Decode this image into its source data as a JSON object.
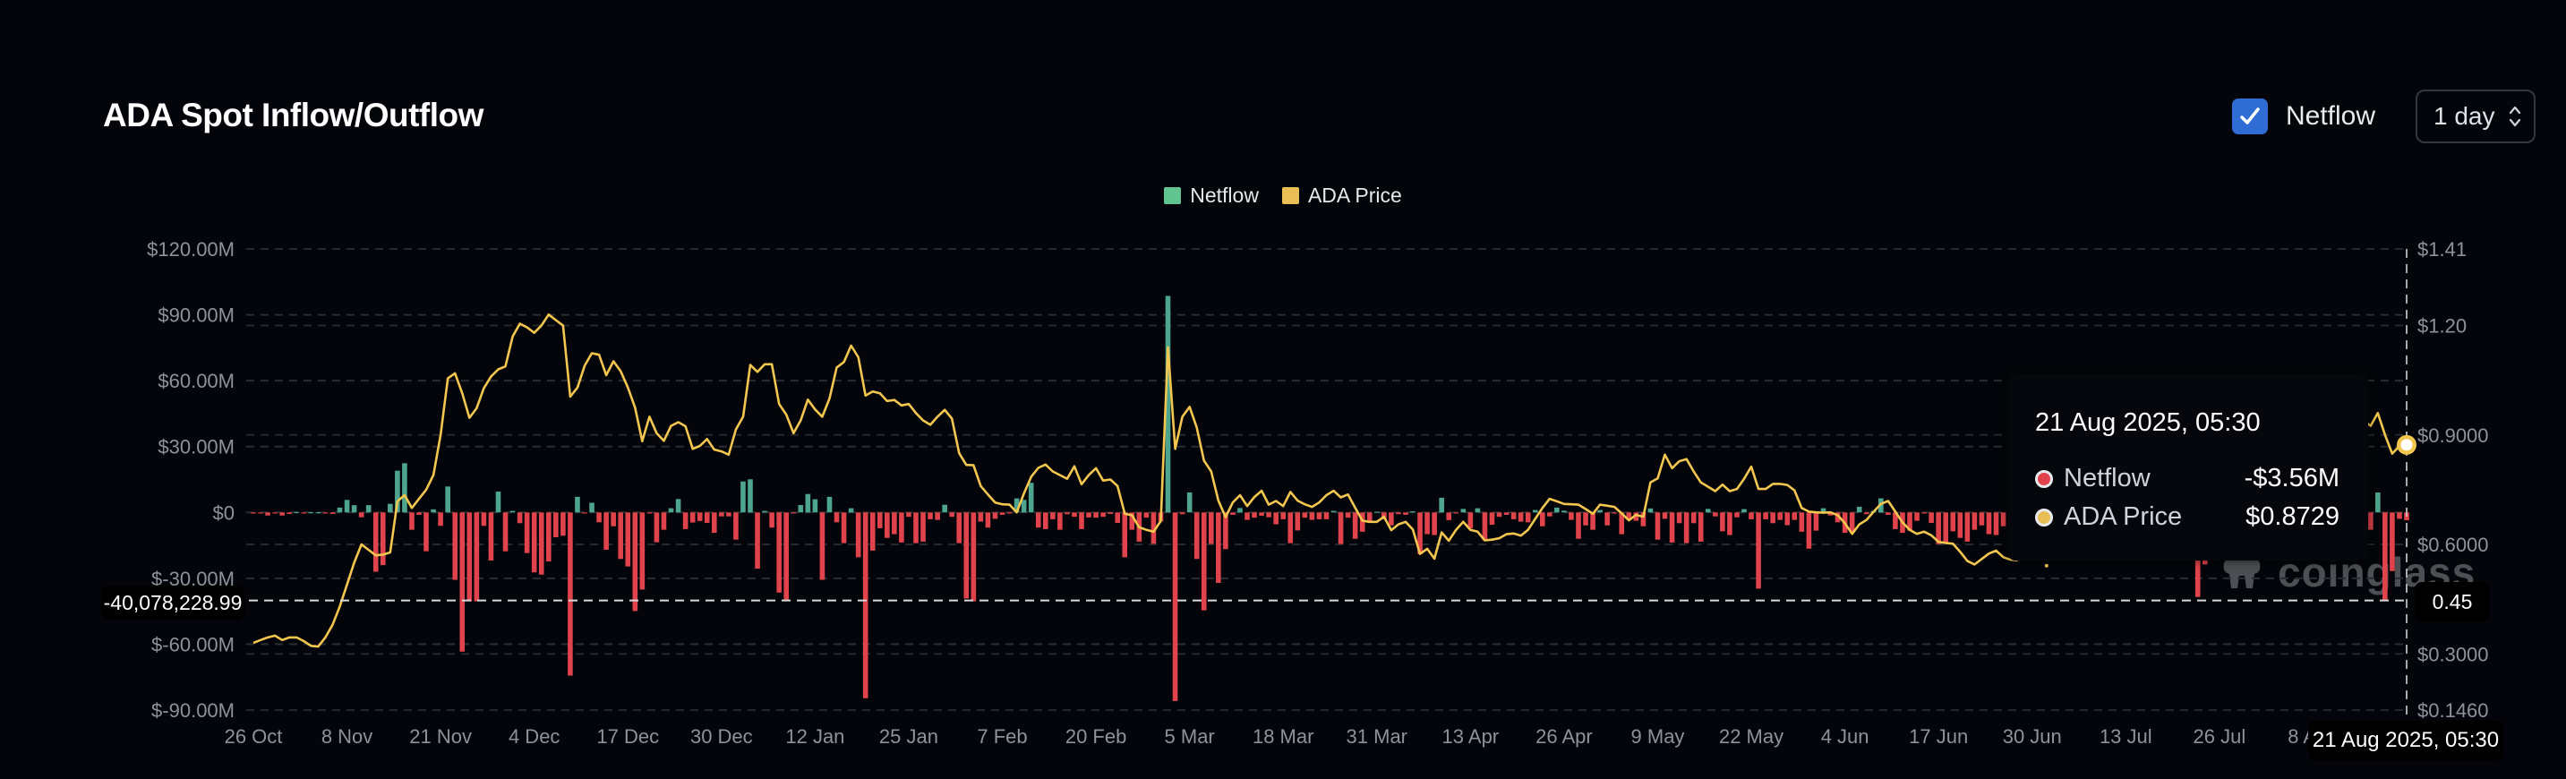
{
  "header": {
    "title": "ADA Spot Inflow/Outflow",
    "netflow_toggle": {
      "label": "Netflow",
      "checked": true
    },
    "interval_select": {
      "value": "1 day"
    }
  },
  "legend": [
    {
      "label": "Netflow",
      "color": "#5fc48e"
    },
    {
      "label": "ADA Price",
      "color": "#e9bf55"
    }
  ],
  "colors": {
    "inflow": "#4ea58f",
    "outflow": "#e0434b",
    "price": "#f3c64f",
    "background": "#03050a",
    "checkbox": "#2f6cd4"
  },
  "tooltip": {
    "date": "21 Aug 2025, 05:30",
    "rows": [
      {
        "label": "Netflow",
        "value": "-$3.56M",
        "dot_color": "#e0434b"
      },
      {
        "label": "ADA Price",
        "value": "$0.8729",
        "dot_color": "#e9bf55"
      }
    ]
  },
  "crosshair": {
    "left_value": "-40,078,228.99",
    "right_value": "0.45",
    "date_label": "21 Aug 2025, 05:30"
  },
  "watermark": "coinglass",
  "chart_data": {
    "type": "bar+line",
    "x_range": [
      "2024-10-26",
      "2025-08-21"
    ],
    "interval": "1 day",
    "x_ticks": [
      "26 Oct",
      "8 Nov",
      "21 Nov",
      "4 Dec",
      "17 Dec",
      "30 Dec",
      "12 Jan",
      "25 Jan",
      "7 Feb",
      "20 Feb",
      "5 Mar",
      "18 Mar",
      "31 Mar",
      "13 Apr",
      "26 Apr",
      "9 May",
      "22 May",
      "4 Jun",
      "17 Jun",
      "30 Jun",
      "13 Jul",
      "26 Jul",
      "8 Aug"
    ],
    "y_left": {
      "unit": "USD millions",
      "range": [
        -90,
        120
      ],
      "ticks": [
        {
          "value": 120,
          "label": "$120.00M"
        },
        {
          "value": 90,
          "label": "$90.00M"
        },
        {
          "value": 60,
          "label": "$60.00M"
        },
        {
          "value": 30,
          "label": "$30.00M"
        },
        {
          "value": 0,
          "label": "$0"
        },
        {
          "value": -30,
          "label": "$-30.00M"
        },
        {
          "value": -60,
          "label": "$-60.00M"
        },
        {
          "value": -90,
          "label": "$-90.00M"
        }
      ]
    },
    "y_right": {
      "unit": "USD",
      "range": [
        0.146,
        1.41
      ],
      "ticks": [
        {
          "value": 1.41,
          "label": "$1.41"
        },
        {
          "value": 1.2,
          "label": "$1.20"
        },
        {
          "value": 0.9,
          "label": "$0.9000"
        },
        {
          "value": 0.6,
          "label": "$0.6000"
        },
        {
          "value": 0.3,
          "label": "$0.3000"
        },
        {
          "value": 0.146,
          "label": "$0.1460"
        }
      ]
    },
    "grid": true,
    "legend_position": "top-center",
    "series": [
      {
        "name": "Netflow",
        "type": "bar",
        "axis": "left",
        "values": [
          -0.5,
          -0.3,
          -1.4,
          -0.3,
          -1.4,
          -0.7,
          0.2,
          -0.5,
          0.1,
          0.1,
          -0.2,
          -0.7,
          2.2,
          5.7,
          3.3,
          -2.2,
          3.3,
          -27,
          -24,
          3.9,
          19,
          22.4,
          -7.9,
          -1.1,
          -17.7,
          1.4,
          -6.1,
          11.8,
          -30.7,
          -63.4,
          -40.5,
          -40.5,
          -6.1,
          -21.9,
          9.5,
          -17.7,
          0.7,
          -4.9,
          -18.5,
          -27.3,
          -28.3,
          -22.3,
          -11.3,
          -10.6,
          -74.3,
          7.1,
          -0.4,
          4.4,
          -4.5,
          -17,
          -6.3,
          -21.2,
          -24.6,
          -44.9,
          -35.1,
          -0.3,
          -13.6,
          -7.9,
          1.9,
          6.1,
          -7.6,
          -4.6,
          -3.9,
          -4.8,
          -9.3,
          -1.8,
          -1.8,
          -12.4,
          14.1,
          15.1,
          -25.6,
          0.7,
          -6.9,
          -36.5,
          -39.9,
          -0.4,
          3.4,
          8.4,
          6.0,
          -30.7,
          7.1,
          -4.5,
          -14,
          1.9,
          -20.4,
          -84.6,
          -17.4,
          -7.2,
          -11.6,
          -9.9,
          -13.7,
          -2,
          -14,
          -13.3,
          -3.1,
          -3.4,
          3.5,
          -2,
          -14,
          -39.2,
          -40.5,
          -4.2,
          -6.9,
          -2.9,
          -1.1,
          -0.3,
          6.4,
          5.7,
          13.5,
          -6.9,
          -7.6,
          -3.1,
          -7.9,
          -0.8,
          -2,
          -7.6,
          -2.3,
          -2.4,
          -2,
          -0.7,
          -4.8,
          -20.4,
          -7.9,
          -13.3,
          -2.4,
          -14.3,
          -4.1,
          98.6,
          -85.9,
          -0.8,
          9.1,
          -21.2,
          -44.6,
          -14.4,
          -32.1,
          -16.7,
          -1.1,
          2.0,
          -3.4,
          -2.4,
          -1.5,
          -2.2,
          -5.4,
          -3.1,
          -14,
          -8.2,
          -2.4,
          -3.4,
          -3.1,
          -3.1,
          0.7,
          -14.4,
          -2.4,
          -12,
          -8.8,
          -3.8,
          0.3,
          -3.1,
          -5.9,
          -0.8,
          -1.1,
          0.5,
          -19,
          -9.9,
          -10.3,
          6.7,
          -3.5,
          -0.3,
          1.6,
          -7.2,
          1.9,
          -12.7,
          -5.6,
          -2,
          -1.1,
          -3.1,
          -4.2,
          -4.5,
          1.1,
          -6.3,
          -1.8,
          2.2,
          0.8,
          -3.4,
          -12,
          -5.9,
          -7.9,
          1.1,
          -5.9,
          -0.5,
          -9.9,
          -3.1,
          -3.8,
          -6.3,
          1.8,
          -12.4,
          -2.9,
          -13.7,
          -4.9,
          -14.0,
          -4.9,
          -13.3,
          1.6,
          -1.8,
          -8.6,
          -10.3,
          -2.2,
          1.5,
          -3.1,
          -34.7,
          -3.1,
          -4.9,
          -3.4,
          -5.8,
          -3.4,
          -8.8,
          -16.5,
          -8.3,
          1.9,
          -1.4,
          -4.5,
          -9.3,
          -9.3,
          2.6,
          -0.8,
          0.7,
          6.4,
          -1.1,
          -7.6,
          -9.3,
          -8.3,
          -3.8,
          -0.3,
          -4.8,
          -14.4,
          -13.6,
          -8.6,
          -11.6,
          -13.3,
          -7.9,
          -5.9,
          -9.9,
          -10.3,
          -6.3,
          null,
          null,
          null,
          null,
          null,
          null,
          null,
          null,
          null,
          null,
          null,
          null,
          null,
          null,
          null,
          null,
          null,
          null,
          null,
          null,
          null,
          null,
          null,
          null,
          null,
          null,
          -38.5,
          -23.7,
          null,
          null,
          null,
          null,
          null,
          null,
          null,
          null,
          null,
          null,
          null,
          null,
          null,
          null,
          null,
          null,
          null,
          null,
          null,
          null,
          null,
          null,
          -7.9,
          9.1,
          -40.08,
          -26.7,
          -2.9,
          -3.56
        ]
      },
      {
        "name": "ADA Price",
        "type": "line",
        "axis": "right",
        "values": [
          0.33,
          0.338,
          0.345,
          0.35,
          0.338,
          0.345,
          0.345,
          0.335,
          0.322,
          0.32,
          0.345,
          0.38,
          0.43,
          0.49,
          0.55,
          0.6,
          0.585,
          0.57,
          0.572,
          0.578,
          0.718,
          0.735,
          0.7,
          0.725,
          0.75,
          0.79,
          0.9,
          1.055,
          1.069,
          1.014,
          0.947,
          0.973,
          1.028,
          1.06,
          1.08,
          1.088,
          1.17,
          1.205,
          1.195,
          1.18,
          1.2,
          1.23,
          1.215,
          1.2,
          1.005,
          1.03,
          1.09,
          1.124,
          1.12,
          1.064,
          1.102,
          1.075,
          1.03,
          0.975,
          0.883,
          0.95,
          0.905,
          0.884,
          0.925,
          0.935,
          0.924,
          0.862,
          0.87,
          0.889,
          0.86,
          0.855,
          0.846,
          0.915,
          0.95,
          1.092,
          1.073,
          1.094,
          1.094,
          0.985,
          0.956,
          0.905,
          0.94,
          0.997,
          0.97,
          0.95,
          1.0,
          1.085,
          1.1,
          1.145,
          1.113,
          1.008,
          1.019,
          1.014,
          0.993,
          0.996,
          0.981,
          0.985,
          0.96,
          0.94,
          0.928,
          0.95,
          0.969,
          0.945,
          0.85,
          0.818,
          0.817,
          0.76,
          0.737,
          0.715,
          0.71,
          0.709,
          0.688,
          0.74,
          0.785,
          0.81,
          0.819,
          0.8,
          0.79,
          0.78,
          0.814,
          0.765,
          0.79,
          0.809,
          0.775,
          0.778,
          0.76,
          0.684,
          0.68,
          0.647,
          0.64,
          0.635,
          0.664,
          1.14,
          0.862,
          0.95,
          0.977,
          0.92,
          0.83,
          0.8,
          0.72,
          0.675,
          0.715,
          0.735,
          0.705,
          0.73,
          0.747,
          0.709,
          0.719,
          0.705,
          0.744,
          0.72,
          0.71,
          0.703,
          0.715,
          0.735,
          0.747,
          0.729,
          0.737,
          0.7,
          0.665,
          0.662,
          0.662,
          0.676,
          0.639,
          0.655,
          0.662,
          0.641,
          0.574,
          0.588,
          0.561,
          0.633,
          0.61,
          0.64,
          0.662,
          0.64,
          0.635,
          0.611,
          0.613,
          0.617,
          0.628,
          0.63,
          0.624,
          0.64,
          0.67,
          0.7,
          0.725,
          0.718,
          0.711,
          0.71,
          0.709,
          0.697,
          0.684,
          0.709,
          0.706,
          0.703,
          0.685,
          0.666,
          0.681,
          0.676,
          0.77,
          0.781,
          0.846,
          0.809,
          0.828,
          0.834,
          0.8,
          0.77,
          0.758,
          0.746,
          0.764,
          0.746,
          0.752,
          0.78,
          0.813,
          0.752,
          0.752,
          0.766,
          0.766,
          0.763,
          0.748,
          0.7,
          0.69,
          0.688,
          0.687,
          0.688,
          0.68,
          0.658,
          0.629,
          0.655,
          0.667,
          0.69,
          0.711,
          0.719,
          0.69,
          0.66,
          0.64,
          0.629,
          0.635,
          0.625,
          0.607,
          0.604,
          0.602,
          0.58,
          0.555,
          0.545,
          0.56,
          0.575,
          0.583,
          0.565,
          0.558,
          0.556,
          null,
          null,
          null,
          0.542,
          null,
          null,
          null,
          null,
          null,
          null,
          null,
          null,
          null,
          null,
          null,
          null,
          null,
          null,
          null,
          null,
          null,
          null,
          null,
          null,
          null,
          null,
          null,
          null,
          null,
          null,
          null,
          null,
          null,
          null,
          null,
          null,
          null,
          null,
          null,
          null,
          null,
          null,
          null,
          null,
          null,
          null,
          null,
          0.94,
          0.925,
          0.96,
          0.9,
          0.849,
          0.87,
          0.8729
        ]
      }
    ]
  }
}
